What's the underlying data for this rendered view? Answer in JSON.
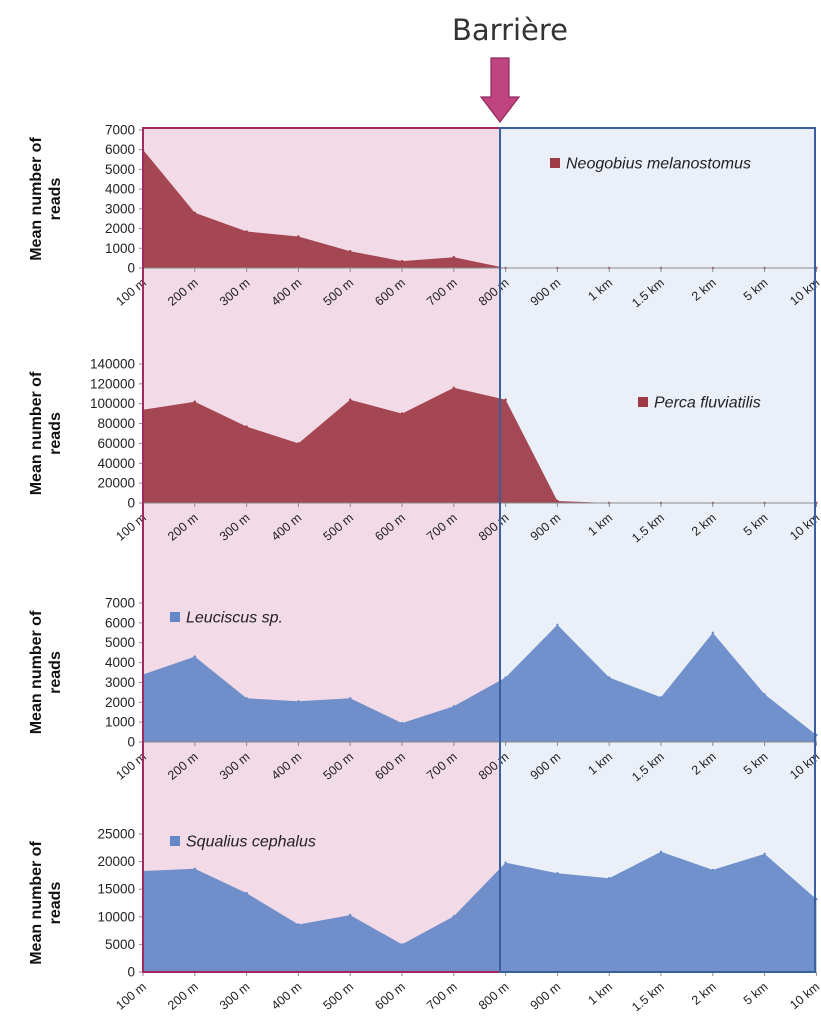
{
  "annotation": {
    "barrier_label": "Barrière",
    "barrier_position": "between 800 m and 900 m",
    "arrow_color": "#C0447F"
  },
  "colors": {
    "upstream_region": "#F2DAE6",
    "upstream_border": "#A3285E",
    "downstream_region": "#EBF0F8",
    "downstream_border": "#3A5F9F",
    "red_series": "#9E3A46",
    "blue_series": "#6589C8"
  },
  "chart_data": [
    {
      "type": "area",
      "ylabel": "Mean number of reads",
      "x": [
        "100 m",
        "200 m",
        "300 m",
        "400 m",
        "500 m",
        "600 m",
        "700 m",
        "800 m",
        "900 m",
        "1 km",
        "1.5 km",
        "2 km",
        "5 km",
        "10 km"
      ],
      "series": [
        {
          "name": "Neogobius melanostomus",
          "color": "#9E3A46",
          "values": [
            6000,
            2800,
            1850,
            1600,
            850,
            350,
            550,
            0,
            0,
            0,
            0,
            0,
            0,
            0
          ]
        }
      ],
      "ylim": [
        0,
        7000
      ],
      "yticks": [
        "0",
        "1000",
        "2000",
        "3000",
        "4000",
        "5000",
        "6000",
        "7000"
      ],
      "legend": "top-right"
    },
    {
      "type": "area",
      "ylabel": "Mean number of reads",
      "x": [
        "100 m",
        "200 m",
        "300 m",
        "400 m",
        "500 m",
        "600 m",
        "700 m",
        "800 m",
        "900 m",
        "1 km",
        "1.5 km",
        "2 km",
        "5 km",
        "10 km"
      ],
      "series": [
        {
          "name": "Perca fluviatilis",
          "color": "#9E3A46",
          "values": [
            94000,
            102000,
            77000,
            60000,
            104000,
            90000,
            116000,
            104000,
            2000,
            0,
            0,
            0,
            0,
            0
          ]
        }
      ],
      "ylim": [
        0,
        140000
      ],
      "yticks": [
        "0",
        "20000",
        "40000",
        "60000",
        "80000",
        "100000",
        "120000",
        "140000"
      ],
      "legend": "top-right"
    },
    {
      "type": "area",
      "ylabel": "Mean number of reads",
      "x": [
        "100 m",
        "200 m",
        "300 m",
        "400 m",
        "500 m",
        "600 m",
        "700 m",
        "800 m",
        "900 m",
        "1 km",
        "1.5 km",
        "2 km",
        "5 km",
        "10 km"
      ],
      "series": [
        {
          "name": "Leuciscus sp.",
          "color": "#6589C8",
          "values": [
            3400,
            4300,
            2200,
            2050,
            2200,
            950,
            1800,
            3250,
            5900,
            3250,
            2250,
            5500,
            2400,
            350
          ]
        }
      ],
      "ylim": [
        0,
        7000
      ],
      "yticks": [
        "0",
        "1000",
        "2000",
        "3000",
        "4000",
        "5000",
        "6000",
        "7000"
      ],
      "legend": "top-left"
    },
    {
      "type": "area",
      "ylabel": "Mean number of reads",
      "x": [
        "100 m",
        "200 m",
        "300 m",
        "400 m",
        "500 m",
        "600 m",
        "700 m",
        "800 m",
        "900 m",
        "1 km",
        "1.5 km",
        "2 km",
        "5 km",
        "10 km"
      ],
      "series": [
        {
          "name": "Squalius cephalus",
          "color": "#6589C8",
          "values": [
            18300,
            18700,
            14300,
            8600,
            10300,
            5000,
            10100,
            19800,
            17900,
            17000,
            21800,
            18500,
            21400,
            13200
          ]
        }
      ],
      "ylim": [
        0,
        25000
      ],
      "yticks": [
        "0",
        "5000",
        "10000",
        "15000",
        "20000",
        "25000"
      ],
      "legend": "top-left"
    }
  ]
}
